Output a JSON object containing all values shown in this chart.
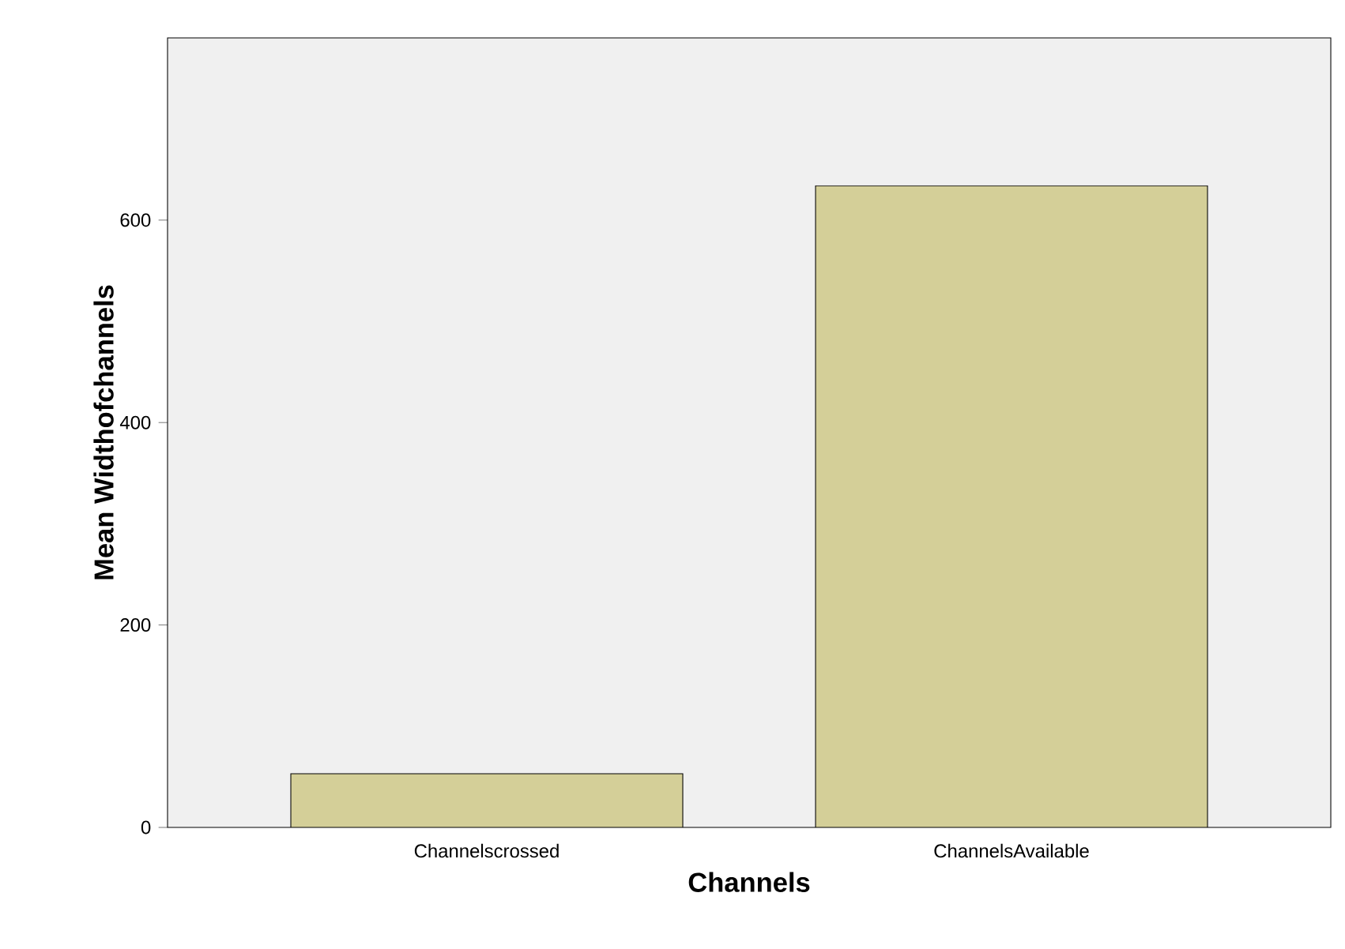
{
  "chart_data": {
    "type": "bar",
    "xlabel": "Channels",
    "ylabel": "Mean Widthofchannels",
    "categories": [
      "Channelscrossed",
      "ChannelsAvailable"
    ],
    "values": [
      53,
      634
    ],
    "color": "#d4cf98",
    "ylim": [
      0,
      780
    ],
    "yticks": [
      0,
      200,
      400,
      600
    ],
    "grid": false
  }
}
